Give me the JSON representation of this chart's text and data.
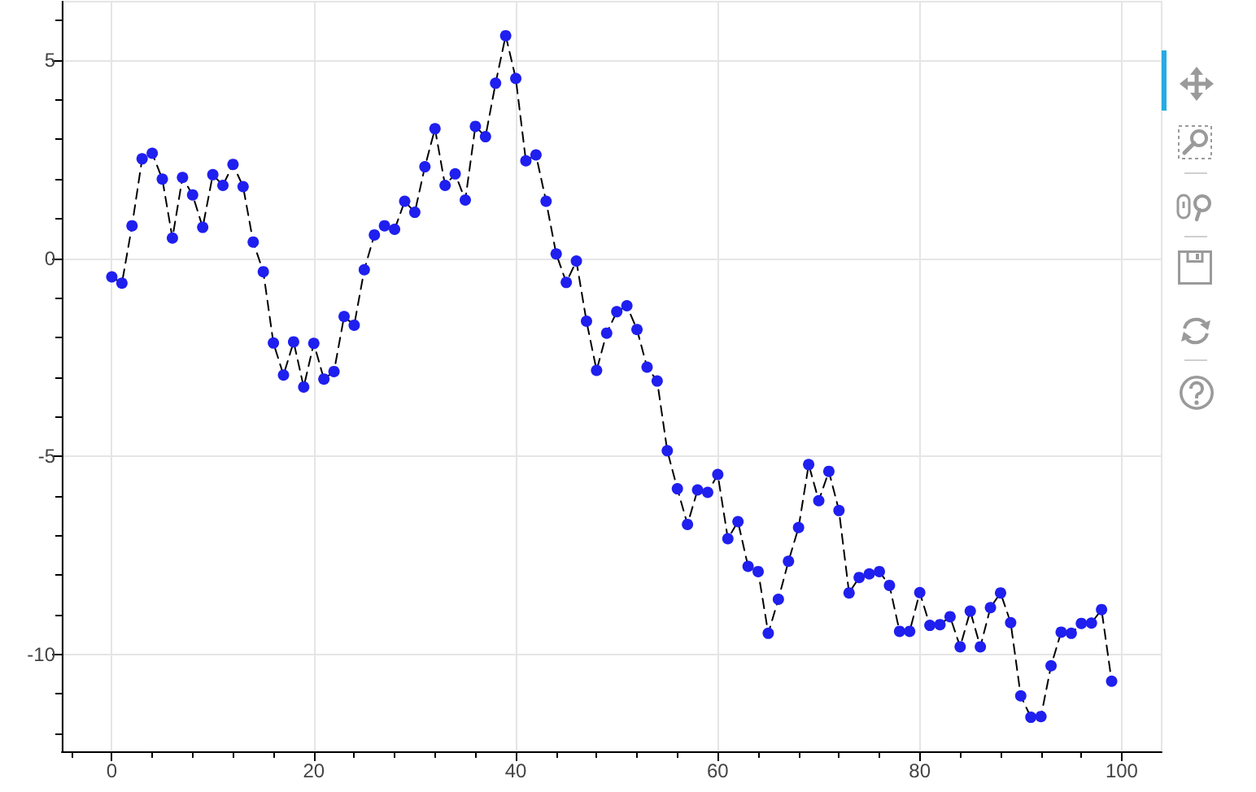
{
  "chart_data": {
    "type": "line",
    "x": [
      0,
      1,
      2,
      3,
      4,
      5,
      6,
      7,
      8,
      9,
      10,
      11,
      12,
      13,
      14,
      15,
      16,
      17,
      18,
      19,
      20,
      21,
      22,
      23,
      24,
      25,
      26,
      27,
      28,
      29,
      30,
      31,
      32,
      33,
      34,
      35,
      36,
      37,
      38,
      39,
      40,
      41,
      42,
      43,
      44,
      45,
      46,
      47,
      48,
      49,
      50,
      51,
      52,
      53,
      54,
      55,
      56,
      57,
      58,
      59,
      60,
      61,
      62,
      63,
      64,
      65,
      66,
      67,
      68,
      69,
      70,
      71,
      72,
      73,
      74,
      75,
      76,
      77,
      78,
      79,
      80,
      81,
      82,
      83,
      84,
      85,
      86,
      87,
      88,
      89,
      90,
      91,
      92,
      93,
      94,
      95,
      96,
      97,
      98,
      99
    ],
    "series": [
      {
        "color": "#000000",
        "marker": "none",
        "values": [
          -0.47,
          -0.63,
          0.82,
          2.51,
          2.65,
          2.0,
          0.51,
          2.04,
          1.6,
          0.78,
          2.11,
          1.84,
          2.37,
          1.81,
          0.41,
          -0.34,
          -2.14,
          -2.95,
          -2.11,
          -3.25,
          -2.15,
          -3.05,
          -2.86,
          -1.47,
          -1.69,
          -0.29,
          0.59,
          0.82,
          0.73,
          1.44,
          1.16,
          2.31,
          3.27,
          1.84,
          2.13,
          1.47,
          3.33,
          3.07,
          4.42,
          5.62,
          4.54,
          2.46,
          2.61,
          1.44,
          0.11,
          -0.61,
          -0.07,
          -1.59,
          -2.83,
          -1.89,
          -1.35,
          -1.2,
          -1.8,
          -2.75,
          -3.1,
          -4.86,
          -5.82,
          -6.72,
          -5.85,
          -5.91,
          -5.46,
          -7.08,
          -6.65,
          -7.78,
          -7.91,
          -9.47,
          -8.61,
          -7.65,
          -6.8,
          -5.21,
          -6.12,
          -5.38,
          -6.37,
          -8.45,
          -8.06,
          -7.97,
          -7.91,
          -8.26,
          -9.42,
          -9.42,
          -8.44,
          -9.27,
          -9.25,
          -9.05,
          -9.81,
          -8.91,
          -9.81,
          -8.82,
          -8.45,
          -9.2,
          -11.05,
          -11.59,
          -11.57,
          -10.29,
          -9.44,
          -9.47,
          -9.22,
          -9.21,
          -8.87,
          -10.68
        ]
      },
      {
        "type": "scatter",
        "color": "#1f1fef",
        "values": [
          -0.47,
          -0.63,
          0.82,
          2.51,
          2.65,
          2.0,
          0.51,
          2.04,
          1.6,
          0.78,
          2.11,
          1.84,
          2.37,
          1.81,
          0.41,
          -0.34,
          -2.14,
          -2.95,
          -2.11,
          -3.25,
          -2.15,
          -3.05,
          -2.86,
          -1.47,
          -1.69,
          -0.29,
          0.59,
          0.82,
          0.73,
          1.44,
          1.16,
          2.31,
          3.27,
          1.84,
          2.13,
          1.47,
          3.33,
          3.07,
          4.42,
          5.62,
          4.54,
          2.46,
          2.61,
          1.44,
          0.11,
          -0.61,
          -0.07,
          -1.59,
          -2.83,
          -1.89,
          -1.35,
          -1.2,
          -1.8,
          -2.75,
          -3.1,
          -4.86,
          -5.82,
          -6.72,
          -5.85,
          -5.91,
          -5.46,
          -7.08,
          -6.65,
          -7.78,
          -7.91,
          -9.47,
          -8.61,
          -7.65,
          -6.8,
          -5.21,
          -6.12,
          -5.38,
          -6.37,
          -8.45,
          -8.06,
          -7.97,
          -7.91,
          -8.26,
          -9.42,
          -9.42,
          -8.44,
          -9.27,
          -9.25,
          -9.05,
          -9.81,
          -8.91,
          -9.81,
          -8.82,
          -8.45,
          -9.2,
          -11.05,
          -11.59,
          -11.57,
          -10.29,
          -9.44,
          -9.47,
          -9.22,
          -9.21,
          -8.87,
          -10.68
        ]
      }
    ],
    "xlim": [
      -4.95,
      103.95
    ],
    "xticks": [
      {
        "value": -4,
        "label": null
      },
      0,
      {
        "value": 4,
        "label": null
      },
      {
        "value": 8,
        "label": null
      },
      {
        "value": 12,
        "label": null
      },
      {
        "value": 16,
        "label": null
      },
      20,
      {
        "value": 24,
        "label": null
      },
      {
        "value": 28,
        "label": null
      },
      {
        "value": 32,
        "label": null
      },
      {
        "value": 36,
        "label": null
      },
      40,
      {
        "value": 44,
        "label": null
      },
      {
        "value": 48,
        "label": null
      },
      {
        "value": 52,
        "label": null
      },
      {
        "value": 56,
        "label": null
      },
      60,
      {
        "value": 64,
        "label": null
      },
      {
        "value": 68,
        "label": null
      },
      {
        "value": 72,
        "label": null
      },
      {
        "value": 76,
        "label": null
      },
      80,
      {
        "value": 84,
        "label": null
      },
      {
        "value": 88,
        "label": null
      },
      {
        "value": 92,
        "label": null
      },
      {
        "value": 96,
        "label": null
      },
      100
    ],
    "ylim": [
      -12.45,
      6.48
    ],
    "yticks": [
      {
        "value": -12,
        "label": null
      },
      {
        "value": -11,
        "label": null
      },
      -10,
      {
        "value": -9,
        "label": null
      },
      {
        "value": -8,
        "label": null
      },
      {
        "value": -7,
        "label": null
      },
      {
        "value": -6,
        "label": null
      },
      -5,
      {
        "value": -4,
        "label": null
      },
      {
        "value": -3,
        "label": null
      },
      {
        "value": -2,
        "label": null
      },
      {
        "value": -1,
        "label": null
      },
      0,
      {
        "value": 1,
        "label": null
      },
      {
        "value": 2,
        "label": null
      },
      {
        "value": 3,
        "label": null
      },
      {
        "value": 4,
        "label": null
      },
      5,
      {
        "value": 6,
        "label": null
      }
    ],
    "grid": true,
    "line_style": "dashed",
    "marker": "circle"
  }
}
